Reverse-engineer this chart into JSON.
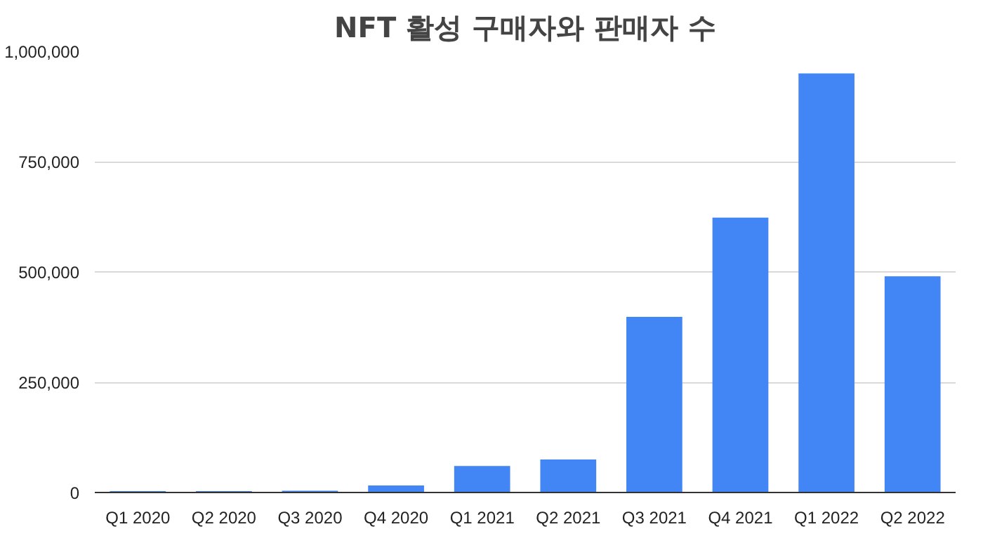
{
  "chart_data": {
    "type": "bar",
    "title": "NFT 활성 구매자와 판매자 수",
    "categories": [
      "Q1 2020",
      "Q2 2020",
      "Q3 2020",
      "Q4 2020",
      "Q1 2021",
      "Q2 2021",
      "Q3 2021",
      "Q4 2021",
      "Q1 2022",
      "Q2 2022"
    ],
    "values": [
      3000,
      3000,
      4000,
      16000,
      60000,
      75000,
      398000,
      623000,
      950000,
      490000
    ],
    "color": "#4285f4",
    "ylim": [
      0,
      1000000
    ],
    "yticks": [
      {
        "value": 0,
        "label": "0"
      },
      {
        "value": 250000,
        "label": "250,000"
      },
      {
        "value": 500000,
        "label": "500,000"
      },
      {
        "value": 750000,
        "label": "750,000"
      },
      {
        "value": 1000000,
        "label": "1,000,000"
      }
    ],
    "grid": "y"
  }
}
